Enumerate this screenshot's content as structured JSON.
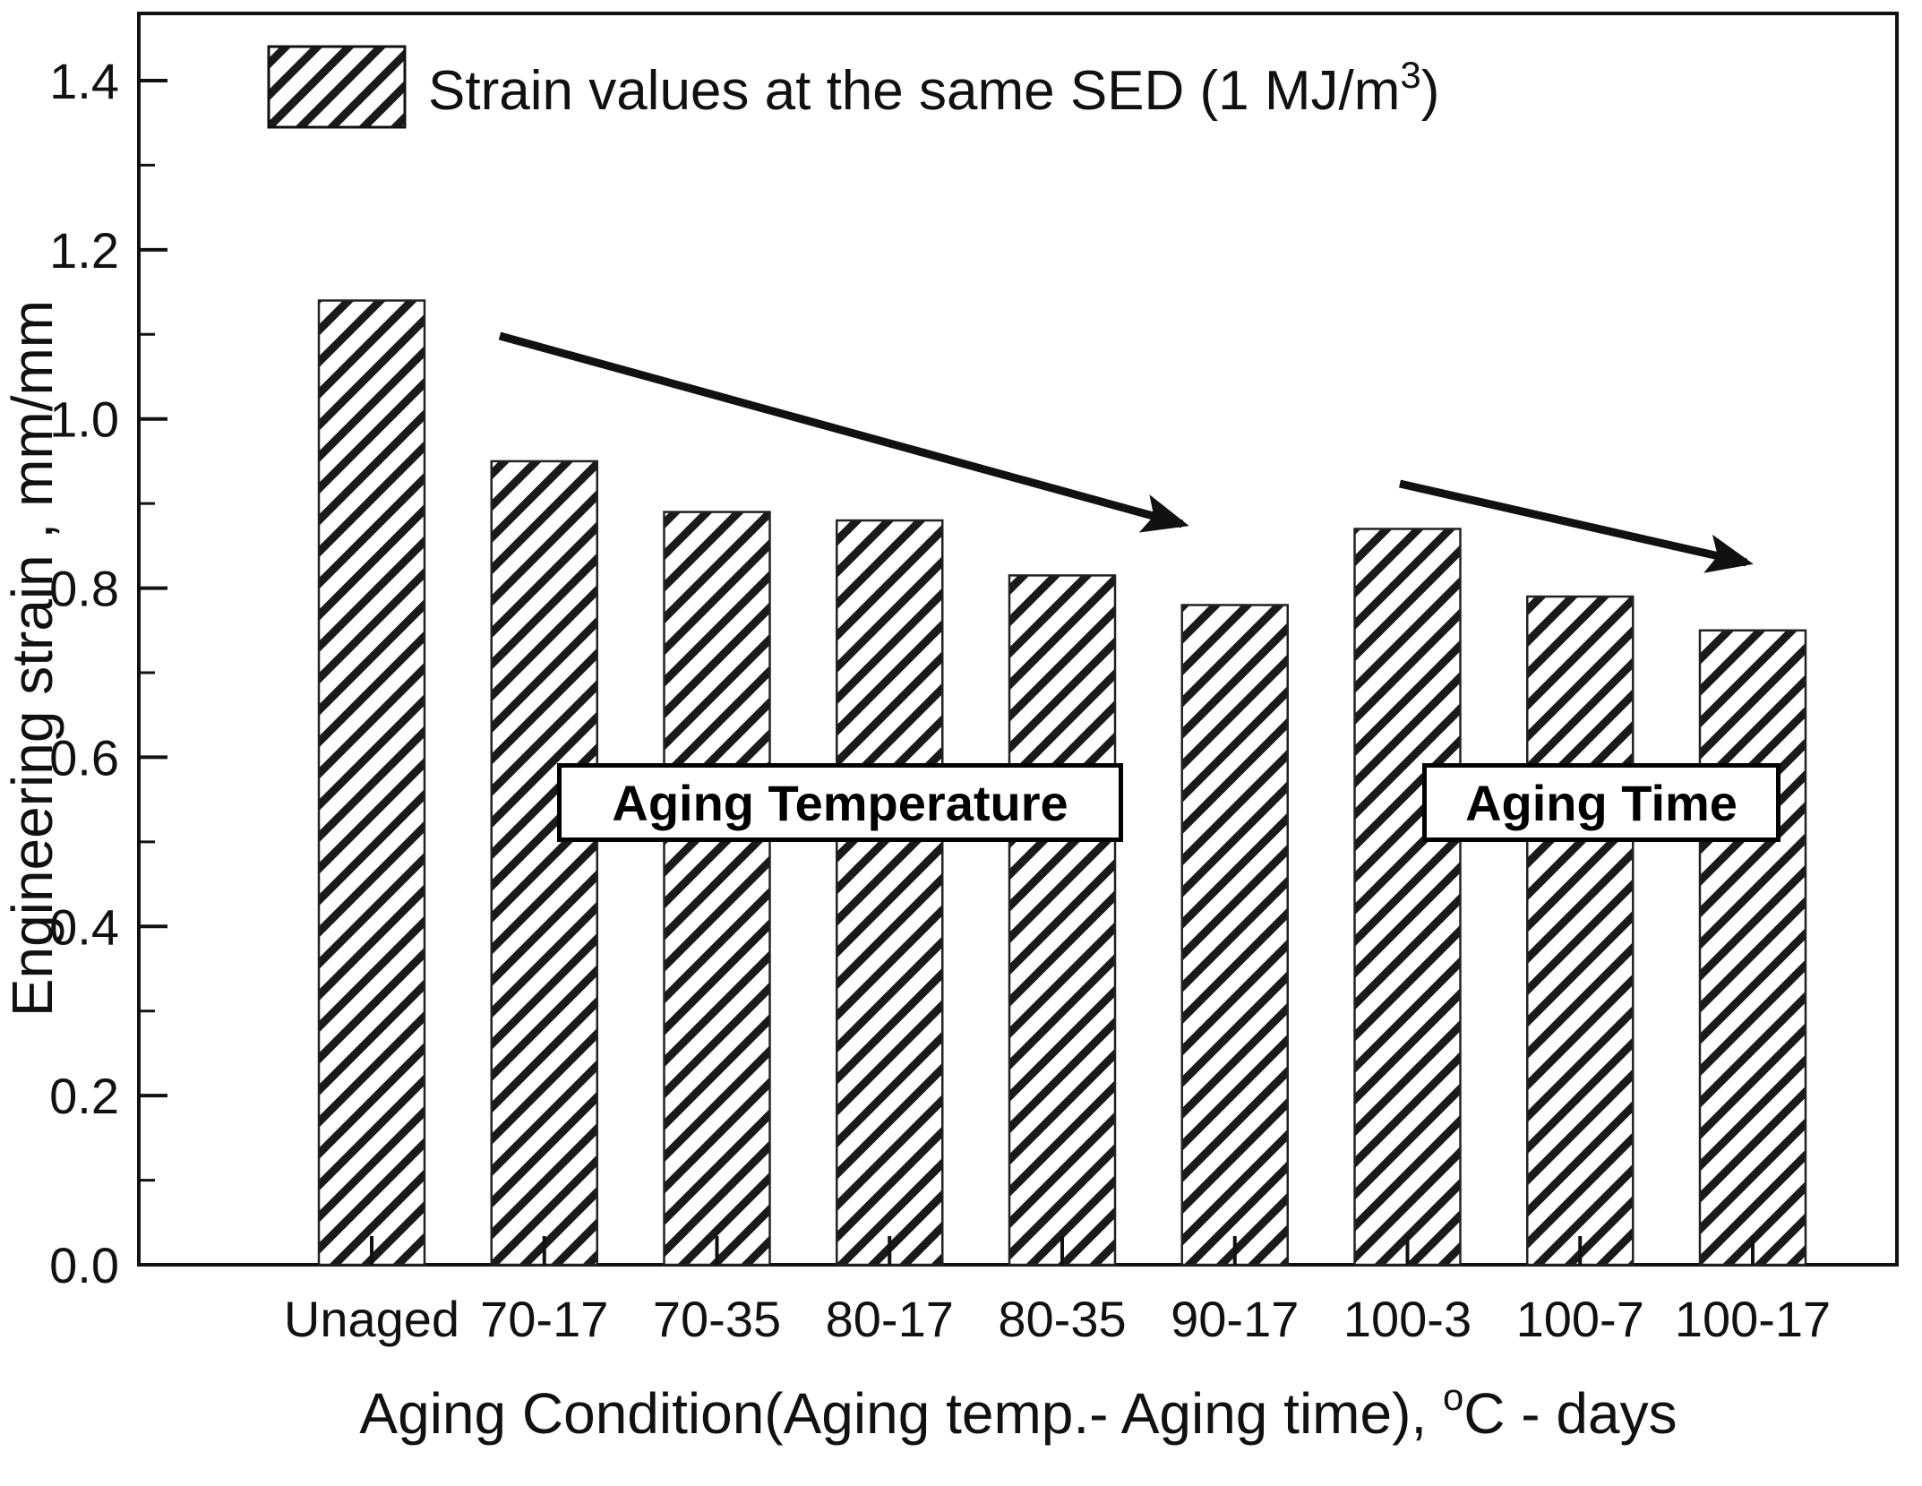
{
  "chart_data": {
    "type": "bar",
    "categories": [
      "Unaged",
      "70-17",
      "70-35",
      "80-17",
      "80-35",
      "90-17",
      "100-3",
      "100-7",
      "100-17"
    ],
    "values": [
      1.14,
      0.95,
      0.89,
      0.88,
      0.815,
      0.78,
      0.87,
      0.79,
      0.75
    ],
    "title": "",
    "xlabel": "Aging Condition(Aging temp.- Aging time), °C - days",
    "ylabel": "Engineering strain , mm/mm",
    "ylim": [
      0,
      1.48
    ],
    "yticks": [
      0.0,
      0.2,
      0.4,
      0.6,
      0.8,
      1.0,
      1.2,
      1.4
    ],
    "grid": false,
    "bar_style": "diagonal-hatch",
    "legend": {
      "position": "top-left-inside",
      "label": "Strain values at the same SED (1 MJ/m³)"
    },
    "annotations": [
      "Aging Temperature",
      "Aging Time"
    ]
  },
  "labels": {
    "legend_prefix": "Strain values at the same SED (1 MJ/m",
    "legend_sup": "3",
    "legend_suffix": ")",
    "xlabel_prefix": "Aging Condition(Aging temp.- Aging time), ",
    "xlabel_sup": "o",
    "xlabel_suffix": "C - days",
    "ylabel": "Engineering strain , mm/mm",
    "annotation_temperature": "Aging Temperature",
    "annotation_time": "Aging Time"
  },
  "colors": {
    "ink": "#111111",
    "background": "#ffffff"
  }
}
